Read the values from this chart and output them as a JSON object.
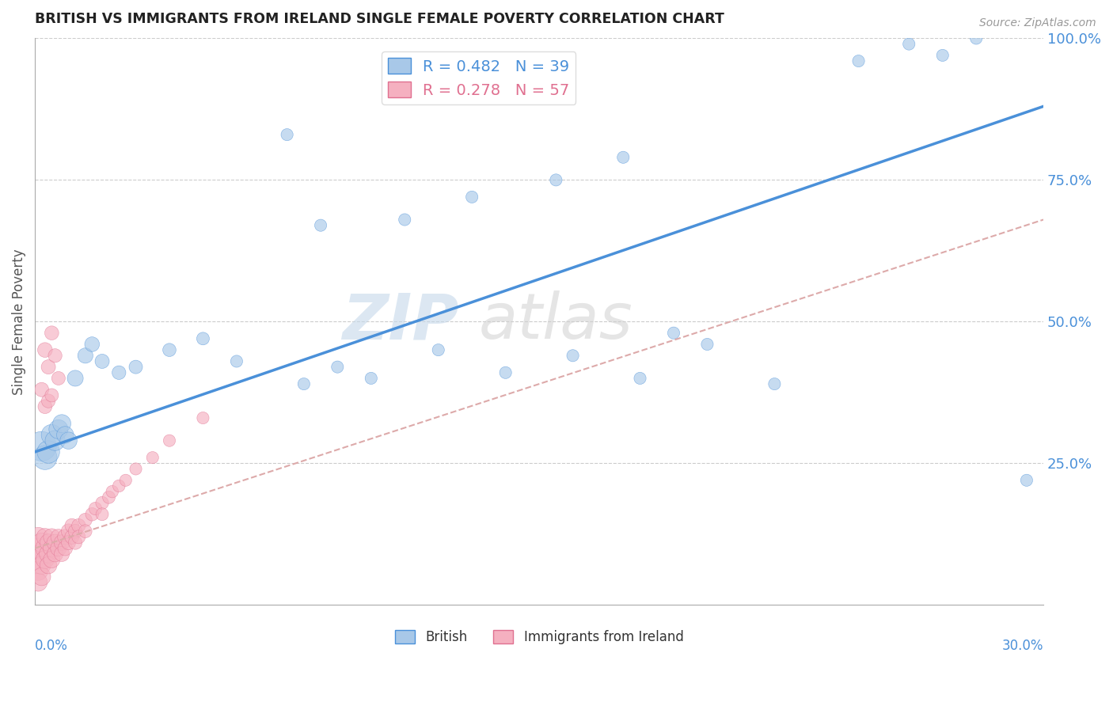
{
  "title": "BRITISH VS IMMIGRANTS FROM IRELAND SINGLE FEMALE POVERTY CORRELATION CHART",
  "source": "Source: ZipAtlas.com",
  "ylabel": "Single Female Poverty",
  "legend_british": "British",
  "legend_ireland": "Immigrants from Ireland",
  "r_british": 0.482,
  "n_british": 39,
  "r_ireland": 0.278,
  "n_ireland": 57,
  "color_british": "#a8c8e8",
  "color_ireland": "#f5b0c0",
  "color_british_line": "#4a90d9",
  "color_ireland_line": "#e07090",
  "xlim": [
    0.0,
    0.3
  ],
  "ylim": [
    0.0,
    1.0
  ],
  "yticks": [
    0.25,
    0.5,
    0.75,
    1.0
  ],
  "ytick_labels": [
    "25.0%",
    "50.0%",
    "75.0%",
    "100.0%"
  ],
  "british_x": [
    0.002,
    0.003,
    0.004,
    0.005,
    0.006,
    0.007,
    0.008,
    0.009,
    0.01,
    0.012,
    0.015,
    0.017,
    0.02,
    0.025,
    0.03,
    0.04,
    0.05,
    0.06,
    0.08,
    0.09,
    0.1,
    0.12,
    0.14,
    0.16,
    0.18,
    0.2,
    0.22,
    0.245,
    0.26,
    0.27,
    0.28,
    0.295,
    0.085,
    0.13,
    0.155,
    0.175,
    0.075,
    0.11,
    0.19
  ],
  "british_y": [
    0.28,
    0.26,
    0.27,
    0.3,
    0.29,
    0.31,
    0.32,
    0.3,
    0.29,
    0.4,
    0.44,
    0.46,
    0.43,
    0.41,
    0.42,
    0.45,
    0.47,
    0.43,
    0.39,
    0.42,
    0.4,
    0.45,
    0.41,
    0.44,
    0.4,
    0.46,
    0.39,
    0.96,
    0.99,
    0.97,
    1.0,
    0.22,
    0.67,
    0.72,
    0.75,
    0.79,
    0.83,
    0.68,
    0.48
  ],
  "british_size": [
    120,
    80,
    70,
    60,
    55,
    50,
    45,
    40,
    40,
    35,
    32,
    30,
    28,
    26,
    25,
    24,
    22,
    20,
    20,
    20,
    20,
    20,
    20,
    20,
    20,
    20,
    20,
    20,
    20,
    20,
    20,
    20,
    20,
    20,
    20,
    20,
    20,
    20,
    20
  ],
  "ireland_x": [
    0.001,
    0.001,
    0.001,
    0.001,
    0.001,
    0.002,
    0.002,
    0.002,
    0.002,
    0.003,
    0.003,
    0.003,
    0.004,
    0.004,
    0.004,
    0.005,
    0.005,
    0.005,
    0.006,
    0.006,
    0.007,
    0.007,
    0.008,
    0.008,
    0.009,
    0.009,
    0.01,
    0.01,
    0.011,
    0.011,
    0.012,
    0.012,
    0.013,
    0.013,
    0.015,
    0.015,
    0.017,
    0.018,
    0.02,
    0.02,
    0.022,
    0.023,
    0.025,
    0.027,
    0.03,
    0.035,
    0.04,
    0.05,
    0.003,
    0.004,
    0.005,
    0.006,
    0.007,
    0.002,
    0.003,
    0.004,
    0.005
  ],
  "ireland_y": [
    0.08,
    0.1,
    0.12,
    0.06,
    0.04,
    0.09,
    0.11,
    0.07,
    0.05,
    0.1,
    0.08,
    0.12,
    0.09,
    0.11,
    0.07,
    0.1,
    0.12,
    0.08,
    0.11,
    0.09,
    0.1,
    0.12,
    0.11,
    0.09,
    0.12,
    0.1,
    0.13,
    0.11,
    0.12,
    0.14,
    0.13,
    0.11,
    0.14,
    0.12,
    0.15,
    0.13,
    0.16,
    0.17,
    0.18,
    0.16,
    0.19,
    0.2,
    0.21,
    0.22,
    0.24,
    0.26,
    0.29,
    0.33,
    0.45,
    0.42,
    0.48,
    0.44,
    0.4,
    0.38,
    0.35,
    0.36,
    0.37
  ],
  "ireland_size": [
    60,
    55,
    50,
    50,
    45,
    55,
    50,
    45,
    45,
    50,
    45,
    40,
    45,
    40,
    40,
    40,
    38,
    38,
    38,
    35,
    35,
    33,
    33,
    32,
    32,
    30,
    30,
    28,
    28,
    27,
    27,
    26,
    26,
    25,
    25,
    24,
    24,
    23,
    23,
    22,
    22,
    21,
    21,
    20,
    20,
    20,
    20,
    20,
    30,
    28,
    27,
    26,
    25,
    28,
    27,
    26,
    25
  ]
}
